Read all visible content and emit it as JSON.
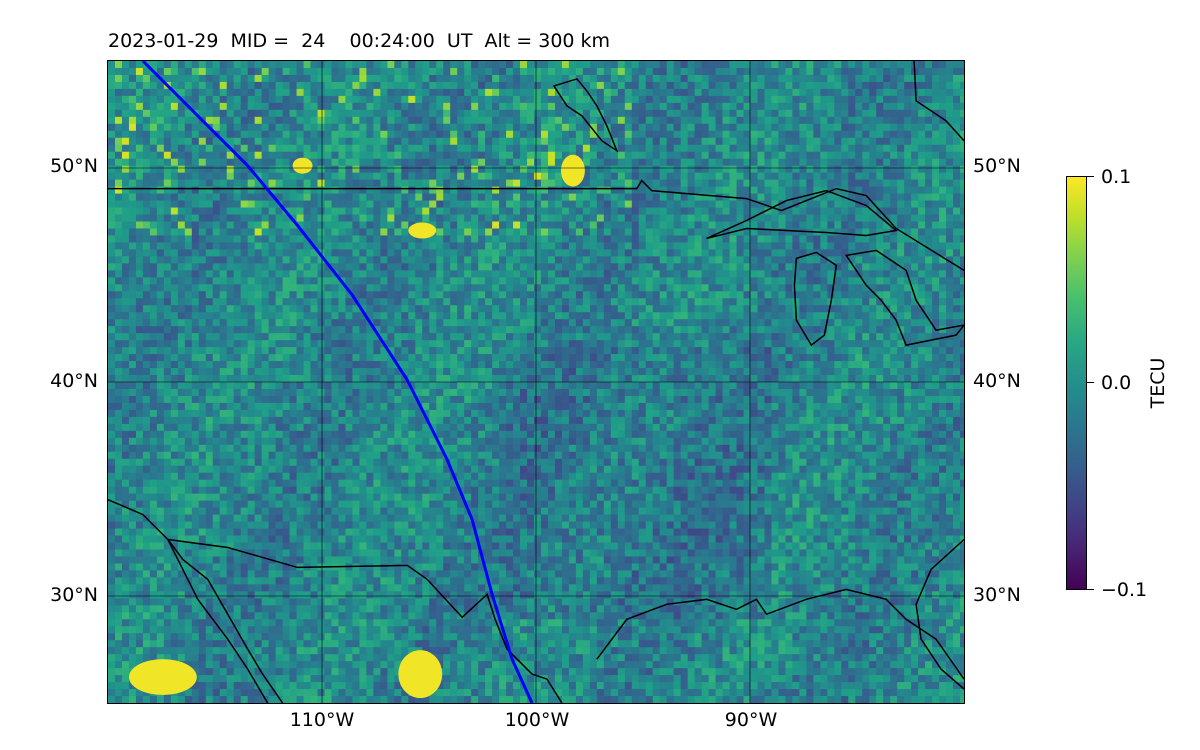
{
  "title": {
    "text": "2023-01-29  MID =  24    00:24:00  UT  Alt = 300 km"
  },
  "map": {
    "projection": "equirectangular",
    "lon_range": [
      -120,
      -80
    ],
    "lat_range": [
      25,
      55
    ],
    "lat_ticks": [
      {
        "value": 50,
        "label": "50°N"
      },
      {
        "value": 40,
        "label": "40°N"
      },
      {
        "value": 30,
        "label": "30°N"
      }
    ],
    "lon_ticks": [
      {
        "value": -110,
        "label": "110°W"
      },
      {
        "value": -100,
        "label": "100°W"
      },
      {
        "value": -90,
        "label": "90°W"
      }
    ],
    "field": "TEC perturbation",
    "field_range": [
      -0.1,
      0.1
    ],
    "track_color": "#0000ff",
    "coast_color": "#000000",
    "grid_color": "#000000"
  },
  "colorbar": {
    "label": "TECU",
    "colormap": "viridis",
    "ticks": [
      {
        "value": 0.1,
        "label": "0.1"
      },
      {
        "value": 0.0,
        "label": "0.0"
      },
      {
        "value": -0.1,
        "label": "−0.1"
      }
    ]
  }
}
